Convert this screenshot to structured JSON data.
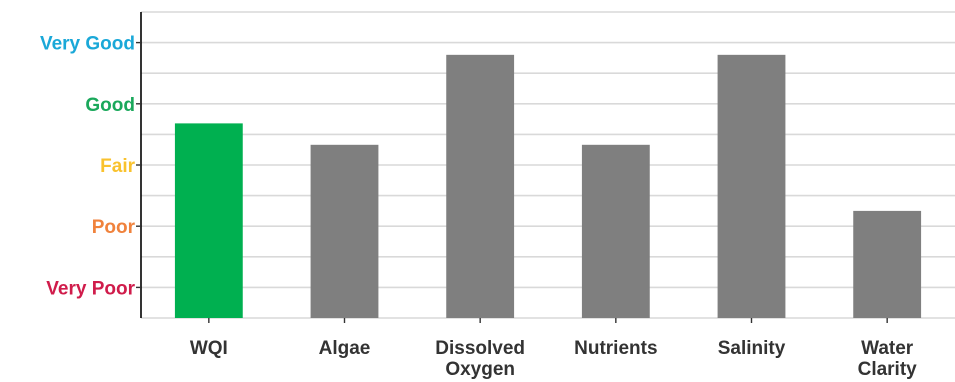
{
  "chart_data": {
    "type": "bar",
    "categories": [
      [
        "WQI"
      ],
      [
        "Algae"
      ],
      [
        "Dissolved",
        "Oxygen"
      ],
      [
        "Nutrients"
      ],
      [
        "Salinity"
      ],
      [
        "Water",
        "Clarity"
      ]
    ],
    "values": [
      3.68,
      3.33,
      4.8,
      3.33,
      4.8,
      2.25
    ],
    "bar_colors": [
      "#00b050",
      "#7f7f7f",
      "#7f7f7f",
      "#7f7f7f",
      "#7f7f7f",
      "#7f7f7f"
    ],
    "y_ticks": [
      {
        "value": 1,
        "label": "Very Poor",
        "color": "#d01c4b"
      },
      {
        "value": 2,
        "label": "Poor",
        "color": "#f0823c"
      },
      {
        "value": 3,
        "label": "Fair",
        "color": "#f9c22e"
      },
      {
        "value": 4,
        "label": "Good",
        "color": "#1aa85b"
      },
      {
        "value": 5,
        "label": "Very Good",
        "color": "#1aa8d8"
      }
    ],
    "ylim": [
      0.5,
      5.5
    ],
    "grid": true,
    "gridline_color": "#d9d9d9",
    "title": "",
    "xlabel": "",
    "ylabel": ""
  }
}
